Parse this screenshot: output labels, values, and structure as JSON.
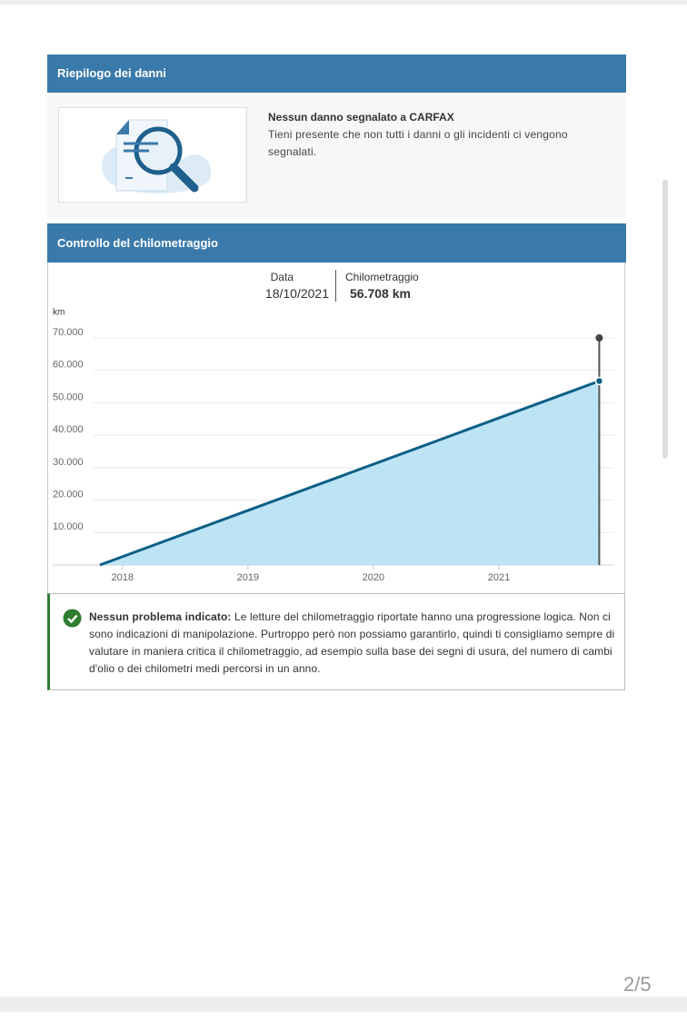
{
  "damage": {
    "header": "Riepilogo dei danni",
    "title": "Nessun danno segnalato a CARFAX",
    "text": "Tieni presente che non tutti i danni o gli incidenti ci vengono segnalati."
  },
  "mileage": {
    "header": "Controllo del chilometraggio",
    "tooltip": {
      "date_label": "Data",
      "date": "18/10/2021",
      "value_label": "Chilometraggio",
      "value": "56.708 km"
    },
    "note": {
      "title": "Nessun problema indicato:",
      "text": "Le letture del chilometraggio riportate hanno una progressione logica. Non ci sono indicazioni di manipolazione. Purtroppo però non possiamo garantirlo, quindi ti consigliamo sempre di valutare in maniera critica il chilometraggio, ad esempio sulla base dei segni di usura, del numero di cambi d'olio o dei chilometri medi percorsi in un anno."
    }
  },
  "chart_data": {
    "type": "area",
    "y_label": "km",
    "series": [
      {
        "color": "#0d5f86",
        "fill": "#bde4f5",
        "x": [
          2017.82,
          2021.8
        ],
        "values": [
          0,
          56708
        ]
      }
    ],
    "xlim": [
      2017.77,
      2021.92
    ],
    "xticks": [
      2018,
      2019,
      2020,
      2021
    ],
    "ylim": [
      0,
      70000
    ],
    "yticks": [
      {
        "value": 10000,
        "label": "10.000"
      },
      {
        "value": 20000,
        "label": "20.000"
      },
      {
        "value": 30000,
        "label": "30.000"
      },
      {
        "value": 40000,
        "label": "40.000"
      },
      {
        "value": 50000,
        "label": "50.000"
      },
      {
        "value": 60000,
        "label": "60.000"
      },
      {
        "value": 70000,
        "label": "70.000"
      }
    ],
    "grid": true
  },
  "page": "2/5"
}
